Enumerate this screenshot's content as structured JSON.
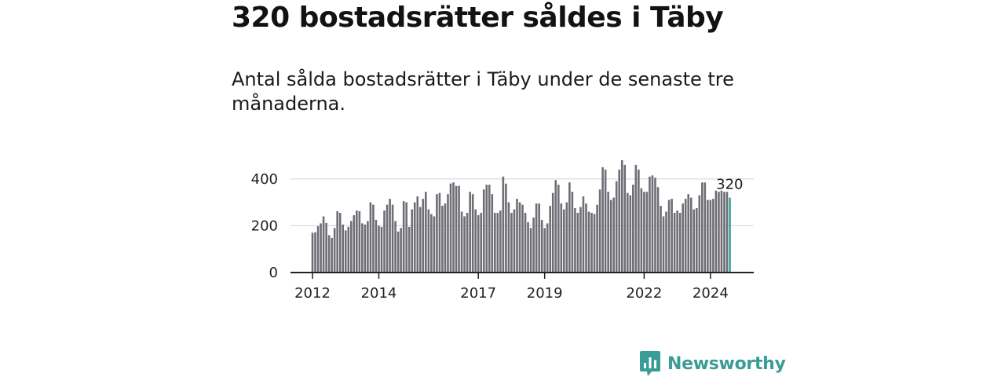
{
  "header": {
    "title": "320 bostadsrätter såldes i Täby",
    "subtitle": "Antal sålda bostadsrätter i Täby under de senaste tre månaderna."
  },
  "colors": {
    "bar": "#6f6d75",
    "highlight": "#3aa39b",
    "grid": "#d9d9d9",
    "axis": "#222222",
    "brand": "#3a9c96"
  },
  "chart_data": {
    "type": "bar",
    "title": "320 bostadsrätter såldes i Täby",
    "subtitle": "Antal sålda bostadsrätter i Täby under de senaste tre månaderna.",
    "xlabel": "",
    "ylabel": "",
    "ylim": [
      0,
      500
    ],
    "yticks": [
      0,
      200,
      400
    ],
    "ytick_labels": [
      "0",
      "200",
      "400"
    ],
    "grid": true,
    "start": "2012-01",
    "frequency": "monthly",
    "xticks": [
      {
        "label": "2012",
        "index": 0
      },
      {
        "label": "2014",
        "index": 24
      },
      {
        "label": "2017",
        "index": 60
      },
      {
        "label": "2019",
        "index": 84
      },
      {
        "label": "2022",
        "index": 120
      },
      {
        "label": "2024",
        "index": 144
      }
    ],
    "values": [
      170,
      172,
      198,
      210,
      240,
      212,
      160,
      148,
      190,
      262,
      255,
      205,
      180,
      195,
      220,
      245,
      265,
      262,
      210,
      205,
      220,
      300,
      290,
      225,
      200,
      195,
      265,
      290,
      315,
      290,
      220,
      175,
      190,
      305,
      300,
      195,
      270,
      300,
      325,
      280,
      315,
      345,
      270,
      250,
      240,
      335,
      340,
      285,
      295,
      335,
      380,
      385,
      370,
      370,
      260,
      240,
      255,
      345,
      335,
      270,
      245,
      255,
      355,
      375,
      375,
      335,
      255,
      255,
      265,
      410,
      380,
      300,
      255,
      270,
      315,
      300,
      290,
      255,
      215,
      190,
      235,
      295,
      295,
      225,
      190,
      210,
      285,
      340,
      395,
      375,
      295,
      270,
      300,
      385,
      345,
      275,
      255,
      280,
      325,
      295,
      260,
      255,
      250,
      290,
      355,
      450,
      440,
      345,
      310,
      320,
      390,
      440,
      480,
      460,
      340,
      330,
      375,
      460,
      440,
      360,
      345,
      345,
      410,
      415,
      405,
      365,
      285,
      240,
      260,
      310,
      315,
      255,
      265,
      255,
      295,
      315,
      335,
      320,
      270,
      275,
      330,
      385,
      385,
      310,
      310,
      315,
      350,
      345,
      350,
      345,
      345,
      320
    ],
    "highlight_index": 151,
    "last_value_label": "320"
  },
  "footer": {
    "brand": "Newsworthy",
    "logo_icon": "newsworthy-logo-icon"
  }
}
